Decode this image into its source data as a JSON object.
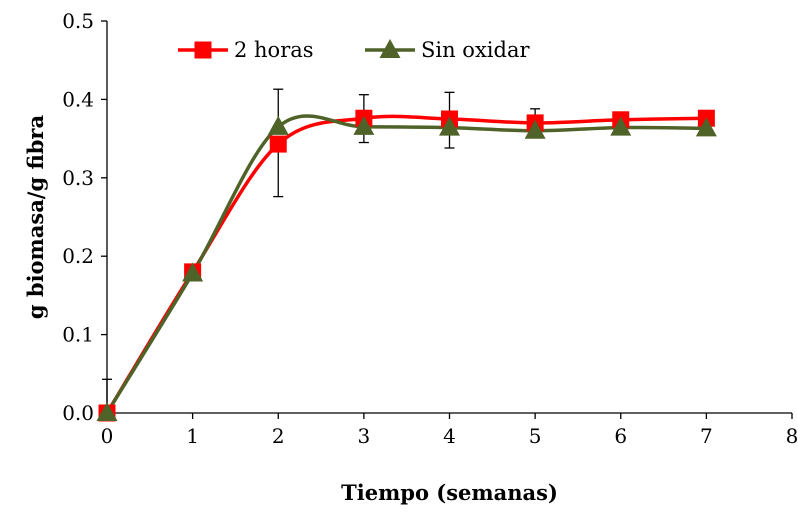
{
  "chart_data": {
    "type": "line",
    "title": "",
    "xlabel": "Tiempo (semanas)",
    "ylabel": "g biomasa/g fibra",
    "xlim": [
      0,
      8
    ],
    "ylim": [
      0,
      0.5
    ],
    "xticks": [
      "0",
      "1",
      "2",
      "3",
      "4",
      "5",
      "6",
      "7",
      "8"
    ],
    "yticks": [
      "0.0",
      "0.1",
      "0.2",
      "0.3",
      "0.4",
      "0.5"
    ],
    "grid": false,
    "legend_position": "top-left",
    "series": [
      {
        "name": "2 horas",
        "color": "#ff0000",
        "marker": "square",
        "x": [
          0,
          1,
          2,
          3,
          4,
          5,
          6,
          7
        ],
        "y": [
          0.0,
          0.18,
          0.343,
          0.376,
          0.375,
          0.37,
          0.374,
          0.376
        ],
        "error_plus": [
          0.043,
          0.0,
          0.0,
          0.03,
          0.034,
          0.018,
          0.0,
          0.0
        ],
        "error_minus": [
          0.0,
          0.0,
          0.067,
          0.0,
          0.0,
          0.0,
          0.0,
          0.0
        ]
      },
      {
        "name": "Sin oxidar",
        "color": "#4f6228",
        "marker": "triangle",
        "x": [
          0,
          1,
          2,
          3,
          4,
          5,
          6,
          7
        ],
        "y": [
          0.0,
          0.178,
          0.365,
          0.365,
          0.364,
          0.36,
          0.364,
          0.363
        ],
        "error_plus": [
          0.0,
          0.0,
          0.048,
          0.0,
          0.0,
          0.0,
          0.0,
          0.0
        ],
        "error_minus": [
          0.0,
          0.0,
          0.0,
          0.02,
          0.026,
          0.0,
          0.0,
          0.0
        ]
      }
    ]
  }
}
